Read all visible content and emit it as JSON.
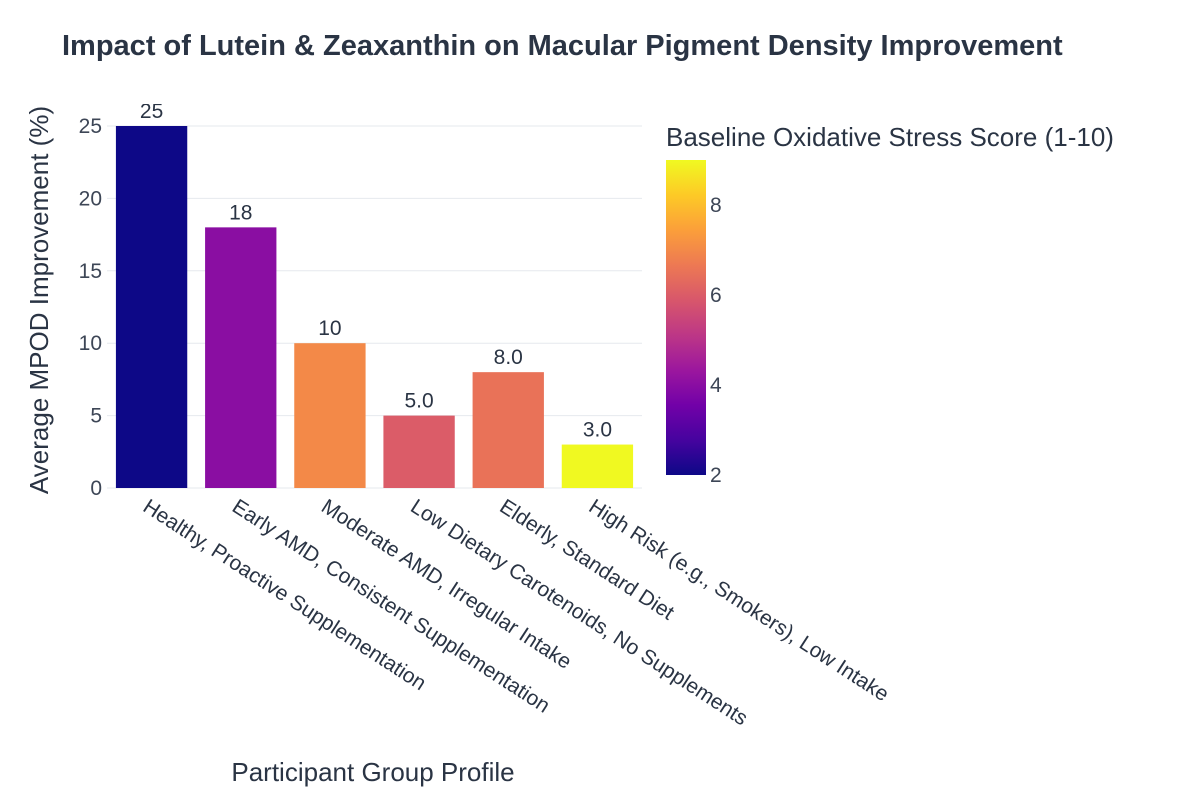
{
  "chart_data": {
    "type": "bar",
    "title": "Impact of Lutein & Zeaxanthin on Macular Pigment Density Improvement",
    "xlabel": "Participant Group Profile",
    "ylabel": "Average MPOD Improvement (%)",
    "categories": [
      "Healthy, Proactive Supplementation",
      "Early AMD, Consistent Supplementation",
      "Moderate AMD, Irregular Intake",
      "Low Dietary Carotenoids, No Supplements",
      "Elderly, Standard Diet",
      "High Risk (e.g., Smokers), Low Intake"
    ],
    "values": [
      25,
      18,
      10,
      5,
      8,
      3
    ],
    "value_labels": [
      "25",
      "18",
      "10",
      "5.0",
      "8.0",
      "3.0"
    ],
    "color_values": [
      2,
      4,
      7,
      6,
      6.5,
      9
    ],
    "ylim": [
      0,
      25
    ],
    "yticks": [
      0,
      5,
      10,
      15,
      20,
      25
    ],
    "grid": true,
    "colorbar": {
      "title": "Baseline Oxidative Stress Score (1-10)",
      "range": [
        2,
        9
      ],
      "ticks": [
        2,
        4,
        6,
        8
      ],
      "colorscale": [
        "#0d0887",
        "#46039f",
        "#7201a8",
        "#9c179e",
        "#bd3786",
        "#d8576b",
        "#ed7953",
        "#fb9f3a",
        "#fdca26",
        "#f0f921"
      ]
    }
  }
}
